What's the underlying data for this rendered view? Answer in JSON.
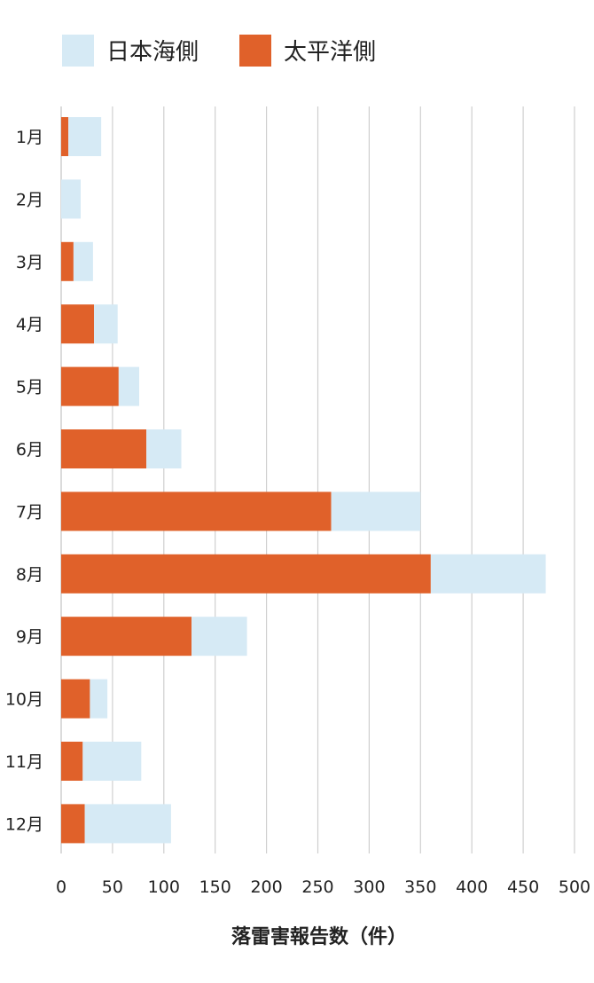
{
  "chart_data": {
    "type": "bar",
    "orientation": "horizontal",
    "stacked": true,
    "categories": [
      "1月",
      "2月",
      "3月",
      "4月",
      "5月",
      "6月",
      "7月",
      "8月",
      "9月",
      "10月",
      "11月",
      "12月"
    ],
    "series": [
      {
        "name": "太平洋側",
        "color": "#e0612a",
        "values": [
          7,
          0,
          12,
          32,
          56,
          83,
          263,
          360,
          127,
          28,
          21,
          23
        ]
      },
      {
        "name": "日本海側",
        "color": "#d6eaf5",
        "values": [
          32,
          19,
          19,
          23,
          20,
          34,
          87,
          112,
          54,
          17,
          57,
          84
        ]
      }
    ],
    "xlabel": "落雷害報告数（件）",
    "ylabel": "",
    "xlim": [
      0,
      500
    ],
    "xticks": [
      0,
      50,
      100,
      150,
      200,
      250,
      300,
      350,
      400,
      450,
      500
    ],
    "grid": "vertical",
    "legend": "top-left"
  },
  "legend": {
    "items": [
      {
        "label": "日本海側",
        "color": "#d6eaf5"
      },
      {
        "label": "太平洋側",
        "color": "#e0612a"
      }
    ]
  },
  "gridline_color": "#cfcfcf"
}
